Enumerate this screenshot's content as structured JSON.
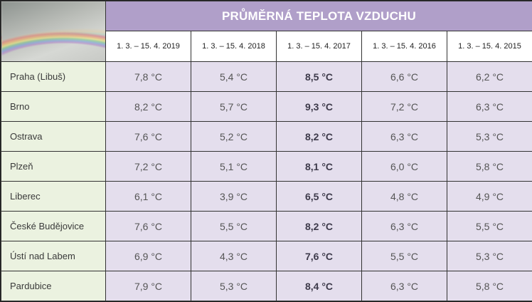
{
  "title": "PRŮMĚRNÁ TEPLOTA VZDUCHU",
  "photo": {
    "description_icon": "rainbow-image"
  },
  "columns": [
    "1. 3. – 15. 4. 2019",
    "1. 3. – 15. 4. 2018",
    "1. 3. – 15. 4. 2017",
    "1. 3. – 15. 4. 2016",
    "1. 3. – 15. 4. 2015"
  ],
  "highlighted_column_index": 2,
  "rows": [
    {
      "city": "Praha (Libuš)",
      "values": [
        "7,8 °C",
        "5,4 °C",
        "8,5 °C",
        "6,6 °C",
        "6,2 °C"
      ]
    },
    {
      "city": "Brno",
      "values": [
        "8,2 °C",
        "5,7 °C",
        "9,3 °C",
        "7,2 °C",
        "6,3 °C"
      ]
    },
    {
      "city": "Ostrava",
      "values": [
        "7,6 °C",
        "5,2 °C",
        "8,2 °C",
        "6,3 °C",
        "5,3 °C"
      ]
    },
    {
      "city": "Plzeň",
      "values": [
        "7,2 °C",
        "5,1 °C",
        "8,1 °C",
        "6,0 °C",
        "5,8 °C"
      ]
    },
    {
      "city": "Liberec",
      "values": [
        "6,1 °C",
        "3,9 °C",
        "6,5 °C",
        "4,8 °C",
        "4,9 °C"
      ]
    },
    {
      "city": "České Budějovice",
      "values": [
        "7,6 °C",
        "5,5 °C",
        "8,2 °C",
        "6,3 °C",
        "5,5 °C"
      ]
    },
    {
      "city": "Ústí nad Labem",
      "values": [
        "6,9 °C",
        "4,3 °C",
        "7,6 °C",
        "5,5 °C",
        "5,3 °C"
      ]
    },
    {
      "city": "Pardubice",
      "values": [
        "7,9 °C",
        "5,3 °C",
        "8,4 °C",
        "6,3 °C",
        "5,8 °C"
      ]
    }
  ],
  "colors": {
    "title_bg": "#b09fc9",
    "city_bg": "#ebf2e0",
    "value_bg": "#e4deed"
  }
}
